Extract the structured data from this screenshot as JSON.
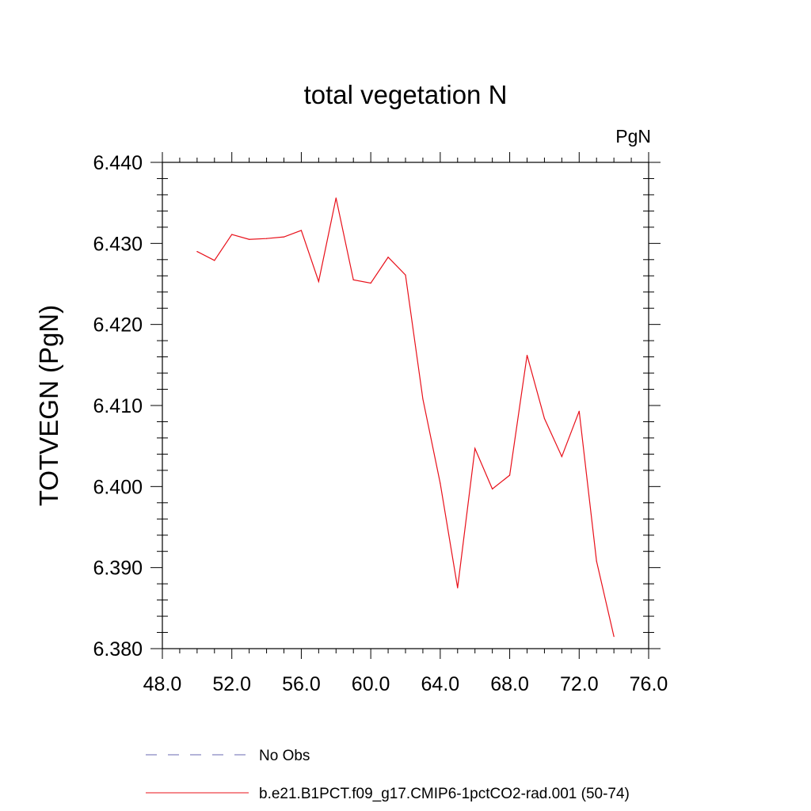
{
  "chart_data": {
    "type": "line",
    "title": "total vegetation N",
    "units_label": "PgN",
    "xlabel": "",
    "ylabel": "TOTVEGN  (PgN)",
    "xlim": [
      48,
      76
    ],
    "ylim": [
      6.38,
      6.44
    ],
    "x_ticks": [
      "48.0",
      "52.0",
      "56.0",
      "60.0",
      "64.0",
      "68.0",
      "72.0",
      "76.0"
    ],
    "y_ticks": [
      "6.380",
      "6.390",
      "6.400",
      "6.410",
      "6.420",
      "6.430",
      "6.440"
    ],
    "grid": false,
    "legend_position": "bottom",
    "x": [
      50,
      51,
      52,
      53,
      54,
      55,
      56,
      57,
      58,
      59,
      60,
      61,
      62,
      63,
      64,
      65,
      66,
      67,
      68,
      69,
      70,
      71,
      72,
      73,
      74
    ],
    "series": [
      {
        "name": "b.e21.B1PCT.f09_g17.CMIP6-1pctCO2-rad.001 (50-74)",
        "color": "#e8101a",
        "style": "solid",
        "values": [
          6.429,
          6.4279,
          6.4311,
          6.4305,
          6.4306,
          6.4308,
          6.4316,
          6.4253,
          6.4356,
          6.4255,
          6.4251,
          6.4283,
          6.4261,
          6.4108,
          6.4004,
          6.3875,
          6.4047,
          6.3997,
          6.4014,
          6.4162,
          6.4084,
          6.4037,
          6.4093,
          6.3908,
          6.3815
        ]
      }
    ],
    "legend": [
      {
        "label": "No Obs",
        "color": "#6a6ab0",
        "style": "dashed"
      },
      {
        "label": "b.e21.B1PCT.f09_g17.CMIP6-1pctCO2-rad.001 (50-74)",
        "color": "#e8101a",
        "style": "solid"
      }
    ]
  }
}
